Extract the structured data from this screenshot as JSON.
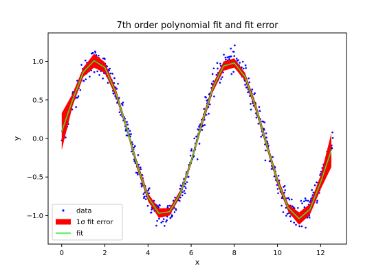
{
  "chart_data": {
    "type": "scatter",
    "title": "7th order polynomial fit and fit error",
    "xlabel": "x",
    "ylabel": "y",
    "xlim": [
      -0.63,
      13.2
    ],
    "ylim": [
      -1.37,
      1.37
    ],
    "x_ticks": [
      0,
      2,
      4,
      6,
      8,
      10,
      12
    ],
    "x_tick_labels": [
      "0",
      "2",
      "4",
      "6",
      "8",
      "10",
      "12"
    ],
    "y_ticks": [
      -1.0,
      -0.5,
      0.0,
      0.5,
      1.0
    ],
    "y_tick_labels": [
      "−1.0",
      "−0.5",
      "0.0",
      "0.5",
      "1.0"
    ],
    "grid": false,
    "legend": {
      "position": "lower-left",
      "entries": [
        {
          "label": "data",
          "marker": "dot",
          "color": "#0000ff"
        },
        {
          "label": "1σ fit error",
          "marker": "patch",
          "color": "#ff0000"
        },
        {
          "label": "fit",
          "marker": "line",
          "color": "#32e632"
        }
      ]
    },
    "series": [
      {
        "name": "data",
        "kind": "scatter",
        "color": "#0000ff",
        "generator": {
          "function": "sin",
          "x_range": [
            0,
            12.566
          ],
          "count": 700,
          "noise_sd": 0.08
        }
      },
      {
        "name": "1σ fit error",
        "kind": "band",
        "color": "#ff0000",
        "x": [
          0,
          0.5,
          1,
          1.5,
          2,
          2.5,
          3,
          3.5,
          4,
          4.5,
          5,
          5.5,
          6,
          6.5,
          7,
          7.5,
          8,
          8.5,
          9,
          9.5,
          10,
          10.5,
          11,
          11.5,
          12,
          12.5
        ],
        "halfwidth": [
          0.24,
          0.08,
          0.06,
          0.09,
          0.07,
          0.05,
          0.04,
          0.05,
          0.05,
          0.06,
          0.05,
          0.04,
          0.04,
          0.05,
          0.05,
          0.06,
          0.06,
          0.05,
          0.05,
          0.05,
          0.05,
          0.05,
          0.08,
          0.07,
          0.09,
          0.22
        ]
      },
      {
        "name": "fit",
        "kind": "line",
        "color": "#32e632",
        "x": [
          0,
          0.5,
          1,
          1.5,
          2,
          2.5,
          3,
          3.5,
          4,
          4.5,
          5,
          5.5,
          6,
          6.5,
          7,
          7.5,
          8,
          8.5,
          9,
          9.5,
          10,
          10.5,
          11,
          11.5,
          12,
          12.5
        ],
        "y": [
          0.09,
          0.5,
          0.86,
          1.01,
          0.92,
          0.6,
          0.15,
          -0.35,
          -0.76,
          -0.97,
          -0.95,
          -0.71,
          -0.3,
          0.2,
          0.65,
          0.94,
          0.98,
          0.8,
          0.4,
          -0.08,
          -0.55,
          -0.9,
          -1.04,
          -0.92,
          -0.57,
          -0.15
        ]
      }
    ]
  }
}
